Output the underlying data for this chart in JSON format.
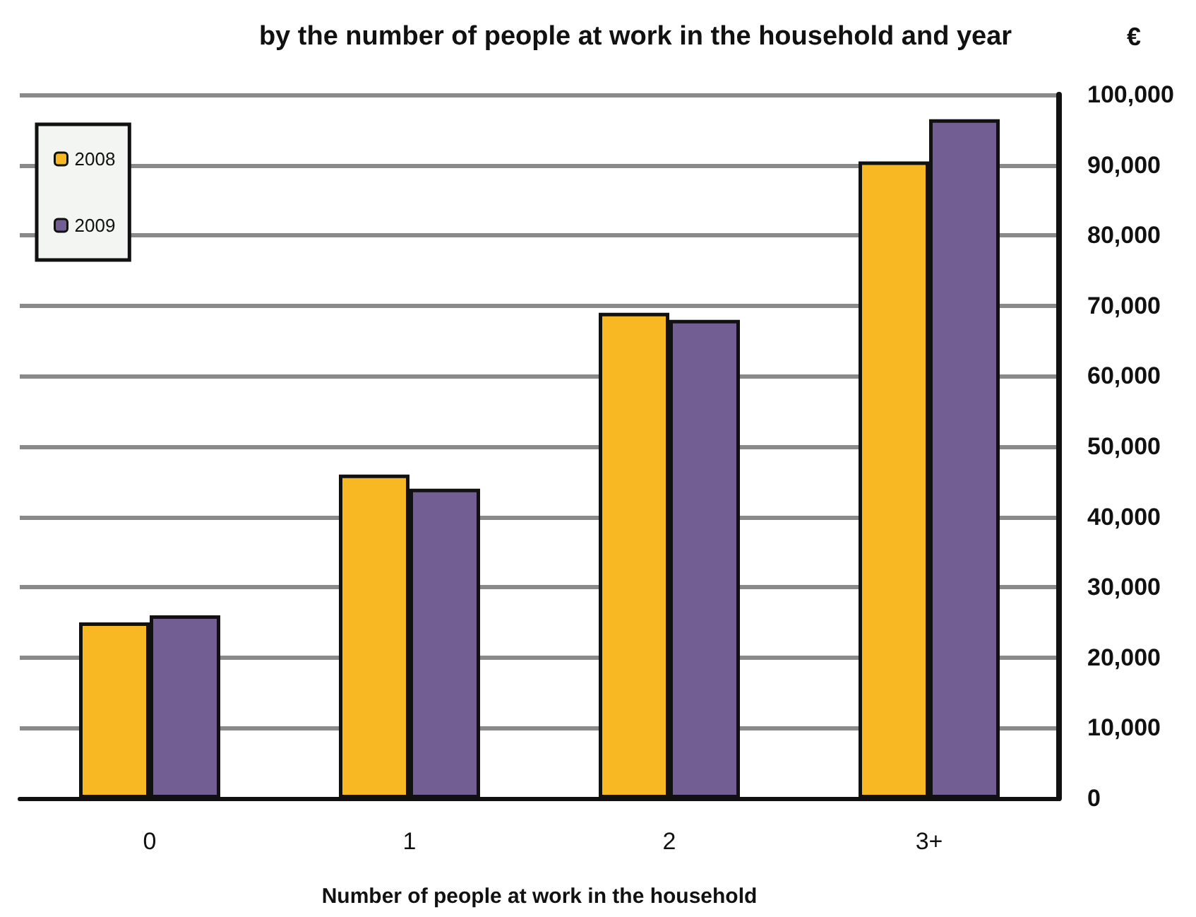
{
  "chart_data": {
    "type": "bar",
    "title": "by the number of people at work in the household and year",
    "xlabel": "Number of people at work in the household",
    "ylabel": "€",
    "categories": [
      "0",
      "1",
      "2",
      "3+"
    ],
    "series": [
      {
        "name": "2008",
        "color": "#f8b823",
        "values": [
          25000,
          46000,
          69000,
          90500
        ]
      },
      {
        "name": "2009",
        "color": "#735e94",
        "values": [
          26000,
          44000,
          68000,
          96500
        ]
      }
    ],
    "ylim": [
      0,
      100000
    ],
    "yticks": [
      0,
      {
        "value": 10000,
        "label": "10,000"
      },
      {
        "value": 20000,
        "label": "20,000"
      },
      {
        "value": 30000,
        "label": "30,000"
      },
      {
        "value": 40000,
        "label": "40,000"
      },
      {
        "value": 50000,
        "label": "50,000"
      },
      {
        "value": 60000,
        "label": "60,000"
      },
      {
        "value": 70000,
        "label": "70,000"
      },
      {
        "value": 80000,
        "label": "80,000"
      },
      {
        "value": 90000,
        "label": "90,000"
      },
      {
        "value": 100000,
        "label": "100,000"
      }
    ],
    "grid": "y",
    "legend": "top left"
  }
}
